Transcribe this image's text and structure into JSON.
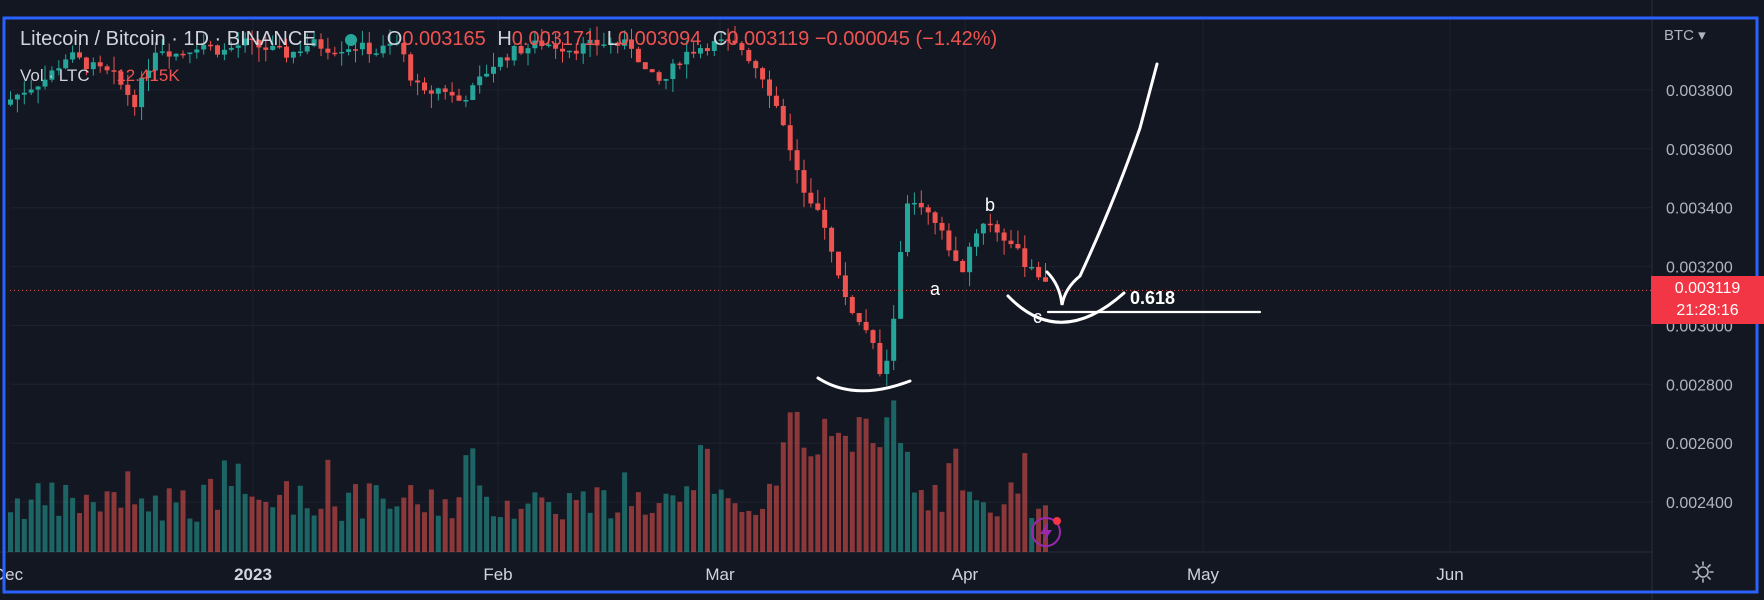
{
  "header": {
    "title": "Litecoin / Bitcoin · 1D · BINANCE",
    "ohlc": [
      {
        "k": "O",
        "v": "0.003165"
      },
      {
        "k": "H",
        "v": "0.003171"
      },
      {
        "k": "L",
        "v": "0.003094"
      },
      {
        "k": "C",
        "v": "0.003119"
      }
    ],
    "change": "−0.000045 (−1.42%)"
  },
  "volume_legend": {
    "label": "Vol · LTC",
    "value": "12.415K"
  },
  "price_axis": {
    "currency": "BTC ▾"
  },
  "last_price": {
    "value": "0.003119",
    "countdown": "21:28:16"
  },
  "annotations": {
    "a": "a",
    "b": "b",
    "c": "c",
    "fib": "0.618"
  },
  "colors": {
    "background": "#131722",
    "up": "#26a69a",
    "down": "#ef5350",
    "grid": "#1e222d",
    "frame": "#2962ff",
    "text": "#d1d4dc"
  },
  "chart_data": {
    "type": "candlestick",
    "title": "Litecoin / Bitcoin · 1D · BINANCE",
    "ylabel": "BTC",
    "ylim": [
      0.00225,
      0.00395
    ],
    "y_ticks": [
      "0.003800",
      "0.003600",
      "0.003400",
      "0.003200",
      "0.003000",
      "0.002800",
      "0.002600",
      "0.002400"
    ],
    "x_ticks": [
      "Dec",
      "2023",
      "Feb",
      "Mar",
      "Apr",
      "May",
      "Jun"
    ],
    "grid": true,
    "last_value": 0.003119,
    "candles": [
      {
        "o": 0.003165,
        "h": 0.003171,
        "l": 0.003094,
        "c": 0.003119
      }
    ],
    "shape_notes": "Price action shows a decline in March to about 0.00282 BTC, a rebound to about 0.00343 BTC labelled b, a dip labelled a near 0.00315 BTC and a pullback labelled c near 0.00310 BTC at the 0.618 level, with hand-drawn arcs and an upward arrow."
  },
  "volume_series": [
    {
      "name": "Vol · LTC",
      "last_value": "12.415K"
    }
  ]
}
